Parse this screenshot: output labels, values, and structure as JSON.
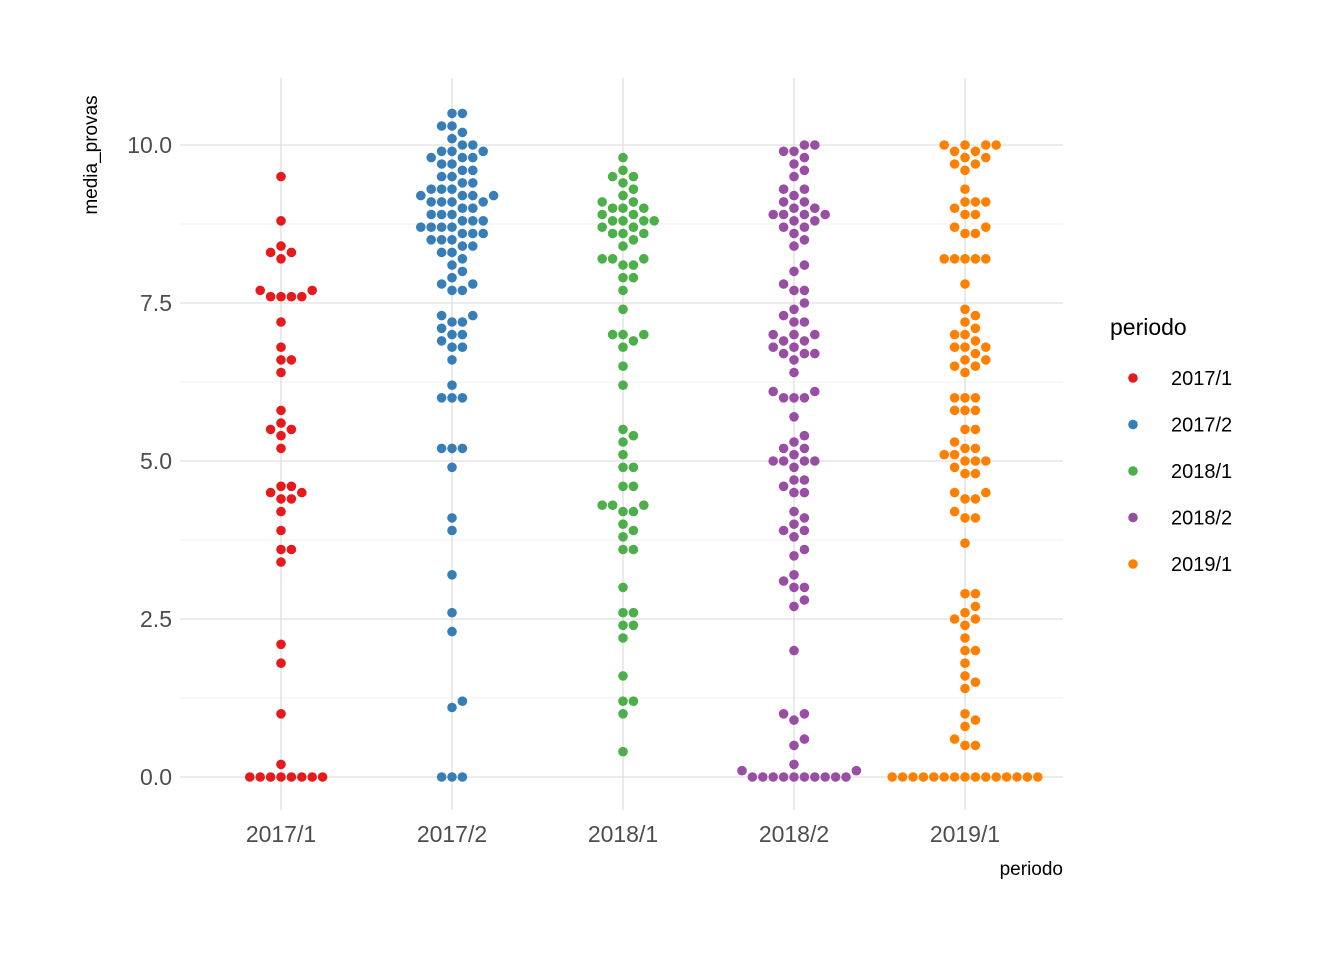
{
  "chart_data": {
    "type": "scatter",
    "subtype": "beeswarm",
    "title": "",
    "xlabel": "periodo",
    "ylabel": "media_provas",
    "categories": [
      "2017/1",
      "2017/2",
      "2018/1",
      "2018/2",
      "2019/1"
    ],
    "ylim": [
      -0.5,
      11.0
    ],
    "yticks": [
      0.0,
      2.5,
      5.0,
      7.5,
      10.0
    ],
    "ytick_labels": [
      "0.0",
      "2.5",
      "5.0",
      "7.5",
      "10.0"
    ],
    "grid": true,
    "legend": {
      "title": "periodo",
      "position": "right"
    },
    "series": [
      {
        "name": "2017/1",
        "color": "#E41A1C",
        "values": [
          9.5,
          8.8,
          8.4,
          8.3,
          8.3,
          8.2,
          7.7,
          7.7,
          7.6,
          7.6,
          7.6,
          7.6,
          7.2,
          6.8,
          6.6,
          6.6,
          6.4,
          5.8,
          5.6,
          5.5,
          5.5,
          5.4,
          5.2,
          4.6,
          4.6,
          4.5,
          4.5,
          4.4,
          4.4,
          4.2,
          3.9,
          3.6,
          3.6,
          3.4,
          2.1,
          1.8,
          1.0,
          0.2,
          0,
          0,
          0,
          0,
          0,
          0,
          0,
          0
        ]
      },
      {
        "name": "2017/2",
        "color": "#377EB8",
        "values": [
          10.5,
          10.5,
          10.3,
          10.3,
          10.2,
          10.1,
          10.0,
          10.0,
          9.9,
          9.9,
          9.9,
          9.8,
          9.8,
          9.8,
          9.7,
          9.7,
          9.6,
          9.6,
          9.5,
          9.5,
          9.4,
          9.4,
          9.3,
          9.3,
          9.3,
          9.2,
          9.2,
          9.2,
          9.2,
          9.1,
          9.1,
          9.1,
          9.1,
          9.0,
          9.0,
          8.9,
          8.9,
          8.9,
          8.8,
          8.8,
          8.8,
          8.7,
          8.7,
          8.7,
          8.7,
          8.6,
          8.6,
          8.6,
          8.5,
          8.5,
          8.5,
          8.4,
          8.4,
          8.3,
          8.3,
          8.2,
          8.1,
          8.0,
          7.9,
          7.8,
          7.8,
          7.7,
          7.7,
          7.3,
          7.3,
          7.2,
          7.2,
          7.1,
          7.0,
          7.0,
          6.9,
          6.8,
          6.8,
          6.6,
          6.2,
          6.0,
          6.0,
          6.0,
          5.2,
          5.2,
          5.2,
          4.9,
          4.1,
          3.9,
          3.2,
          2.6,
          2.3,
          1.2,
          1.1,
          0,
          0,
          0
        ]
      },
      {
        "name": "2018/1",
        "color": "#4DAF4A",
        "values": [
          9.8,
          9.6,
          9.5,
          9.5,
          9.4,
          9.3,
          9.2,
          9.1,
          9.1,
          9.0,
          9.0,
          9.0,
          8.9,
          8.9,
          8.8,
          8.8,
          8.8,
          8.8,
          8.7,
          8.7,
          8.6,
          8.6,
          8.6,
          8.5,
          8.4,
          8.2,
          8.2,
          8.2,
          8.1,
          8.1,
          7.9,
          7.9,
          7.7,
          7.4,
          7.0,
          7.0,
          7.0,
          6.9,
          6.8,
          6.5,
          6.2,
          5.5,
          5.4,
          5.3,
          5.1,
          4.9,
          4.9,
          4.6,
          4.6,
          4.3,
          4.3,
          4.3,
          4.2,
          4.2,
          4.0,
          3.9,
          3.8,
          3.6,
          3.6,
          3.0,
          2.6,
          2.6,
          2.4,
          2.4,
          2.2,
          1.6,
          1.2,
          1.2,
          1.0,
          0.4
        ]
      },
      {
        "name": "2018/2",
        "color": "#984EA3",
        "values": [
          10.0,
          10.0,
          9.9,
          9.9,
          9.8,
          9.7,
          9.6,
          9.5,
          9.3,
          9.3,
          9.2,
          9.1,
          9.1,
          9.0,
          9.0,
          8.9,
          8.9,
          8.9,
          8.9,
          8.8,
          8.8,
          8.7,
          8.7,
          8.6,
          8.5,
          8.4,
          8.1,
          8.0,
          7.8,
          7.7,
          7.7,
          7.5,
          7.4,
          7.3,
          7.2,
          7.2,
          7.0,
          7.0,
          7.0,
          6.9,
          6.9,
          6.8,
          6.8,
          6.7,
          6.7,
          6.7,
          6.6,
          6.4,
          6.1,
          6.1,
          6.0,
          6.0,
          6.0,
          5.7,
          5.4,
          5.3,
          5.2,
          5.2,
          5.1,
          5.0,
          5.0,
          5.0,
          5.0,
          4.9,
          4.7,
          4.7,
          4.6,
          4.5,
          4.5,
          4.2,
          4.1,
          4.0,
          3.9,
          3.9,
          3.8,
          3.6,
          3.5,
          3.2,
          3.1,
          3.0,
          3.0,
          2.8,
          2.7,
          2.0,
          1.0,
          1.0,
          0.9,
          0.6,
          0.5,
          0.2,
          0.1,
          0.1,
          0,
          0,
          0,
          0,
          0,
          0,
          0,
          0,
          0,
          0
        ]
      },
      {
        "name": "2019/1",
        "color": "#FF7F00",
        "values": [
          10.0,
          10.0,
          10.0,
          10.0,
          9.9,
          9.9,
          9.8,
          9.8,
          9.7,
          9.7,
          9.6,
          9.3,
          9.1,
          9.1,
          9.1,
          9.0,
          8.9,
          8.9,
          8.7,
          8.7,
          8.6,
          8.6,
          8.2,
          8.2,
          8.2,
          8.2,
          8.2,
          7.8,
          7.4,
          7.3,
          7.2,
          7.1,
          7.0,
          7.0,
          6.9,
          6.8,
          6.8,
          6.8,
          6.7,
          6.6,
          6.6,
          6.5,
          6.5,
          6.4,
          6.0,
          6.0,
          6.0,
          5.8,
          5.8,
          5.8,
          5.5,
          5.5,
          5.3,
          5.2,
          5.2,
          5.1,
          5.1,
          5.0,
          5.0,
          5.0,
          4.9,
          4.8,
          4.8,
          4.5,
          4.5,
          4.4,
          4.4,
          4.2,
          4.1,
          4.1,
          3.7,
          2.9,
          2.9,
          2.7,
          2.6,
          2.5,
          2.5,
          2.4,
          2.2,
          2.0,
          2.0,
          1.8,
          1.6,
          1.5,
          1.4,
          1.0,
          0.9,
          0.8,
          0.6,
          0.5,
          0.5,
          0,
          0,
          0,
          0,
          0,
          0,
          0,
          0,
          0,
          0,
          0,
          0,
          0,
          0,
          0
        ]
      }
    ]
  }
}
